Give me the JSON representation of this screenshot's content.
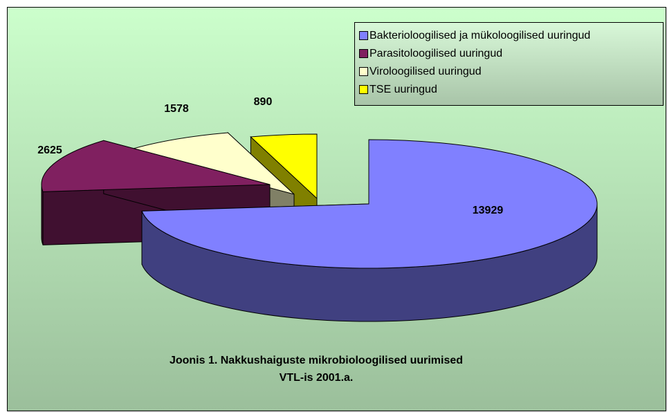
{
  "chart_data": {
    "type": "pie3d",
    "title": [
      "Joonis 1. Nakkushaiguste mikrobioloogilised uurimised",
      "VTL-is 2001.a."
    ],
    "categories": [
      "Bakterioloogilised ja mükoloogilised uuringud",
      "Parasitoloogilised uuringud",
      "Viroloogilised uuringud",
      "TSE uuringud"
    ],
    "values": [
      13929,
      2625,
      1578,
      890
    ],
    "colors": [
      "#8080ff",
      "#802060",
      "#ffffcc",
      "#ffff00"
    ],
    "legend": "top-right"
  }
}
